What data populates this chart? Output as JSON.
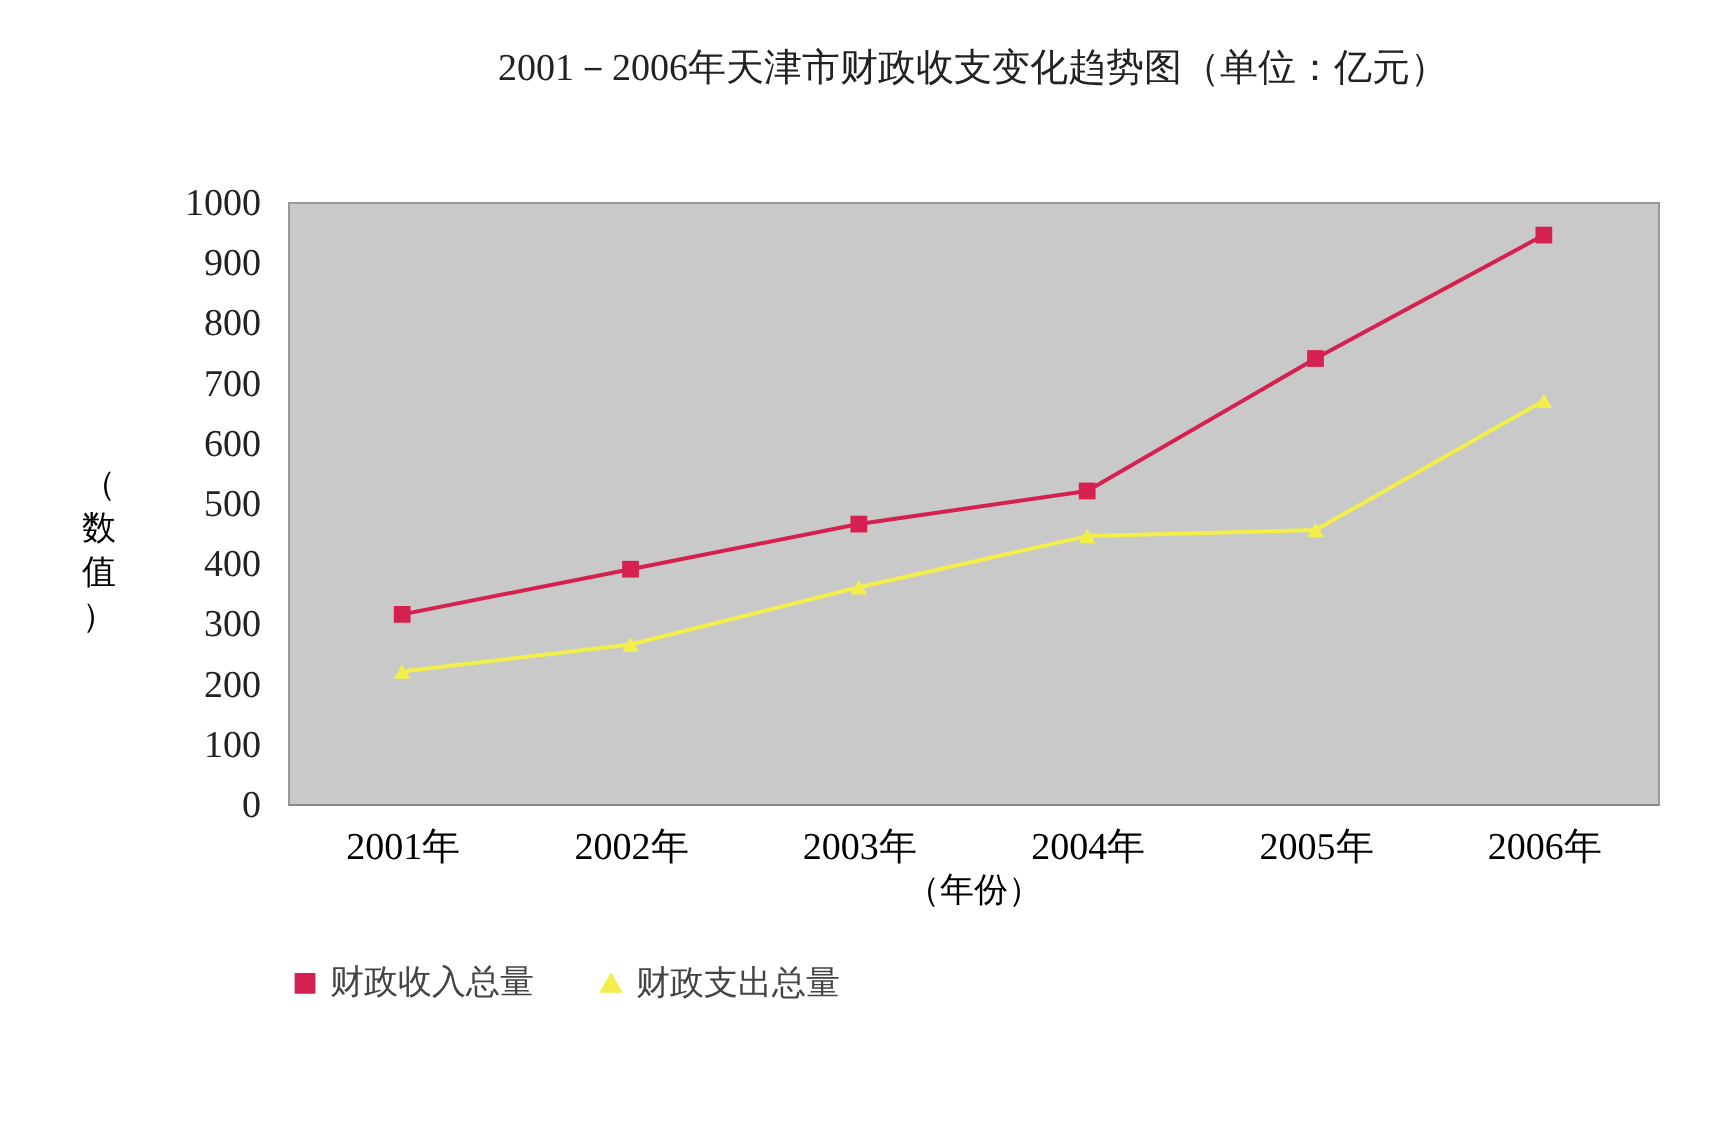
{
  "chart_data": {
    "type": "line",
    "title": "2001－2006年天津市财政收支变化趋势图（单位：亿元）",
    "xlabel": "（年份）",
    "ylabel": "（数值）",
    "categories": [
      "2001年",
      "2002年",
      "2003年",
      "2004年",
      "2005年",
      "2006年"
    ],
    "series": [
      {
        "name": "财政收入总量",
        "color": "#d6204f",
        "marker": "square",
        "values": [
          315,
          390,
          465,
          520,
          740,
          945
        ]
      },
      {
        "name": "财政支出总量",
        "color": "#f2ee4a",
        "marker": "triangle",
        "values": [
          220,
          265,
          360,
          445,
          455,
          670
        ]
      }
    ],
    "ylim": [
      0,
      1000
    ],
    "yticks": [
      0,
      100,
      200,
      300,
      400,
      500,
      600,
      700,
      800,
      900,
      1000
    ],
    "grid": false,
    "legend": "bottom"
  }
}
